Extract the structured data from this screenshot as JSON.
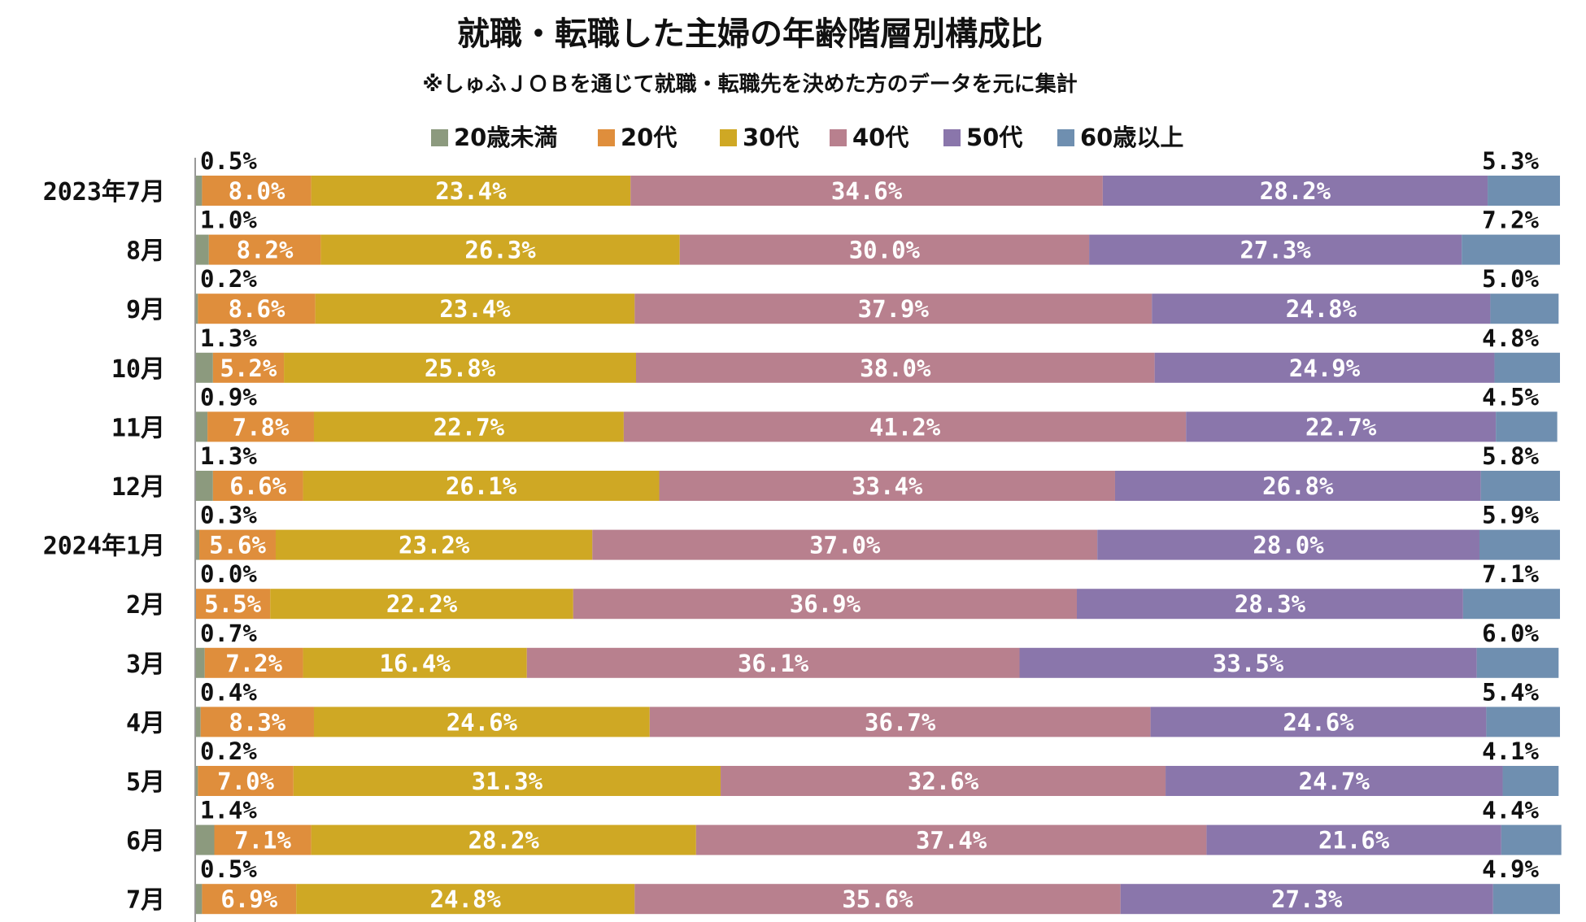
{
  "chart_data": {
    "type": "bar",
    "orientation": "horizontal-stacked-100",
    "title": "就職・転職した主婦の年齢階層別構成比",
    "subtitle": "※しゅふＪＯＢを通じて就職・転職先を決めた方のデータを元に集計",
    "legend_position": "top",
    "grid": false,
    "xlim": [
      0,
      100
    ],
    "categories": [
      "2023年7月",
      "8月",
      "9月",
      "10月",
      "11月",
      "12月",
      "2024年1月",
      "2月",
      "3月",
      "4月",
      "5月",
      "6月",
      "7月"
    ],
    "series": [
      {
        "name": "20歳未満",
        "color": "#8c9a7e",
        "values": [
          0.5,
          1.0,
          0.2,
          1.3,
          0.9,
          1.3,
          0.3,
          0.0,
          0.7,
          0.4,
          0.2,
          1.4,
          0.5
        ],
        "labels": [
          "0.5%",
          "1.0%",
          "0.2%",
          "1.3%",
          "0.9%",
          "1.3%",
          "0.3%",
          "0.0%",
          "0.7%",
          "0.4%",
          "0.2%",
          "1.4%",
          "0.5%"
        ]
      },
      {
        "name": "20代",
        "color": "#df8e3c",
        "values": [
          8.0,
          8.2,
          8.6,
          5.2,
          7.8,
          6.6,
          5.6,
          5.5,
          7.2,
          8.3,
          7.0,
          7.1,
          6.9
        ],
        "labels": [
          "8.0%",
          "8.2%",
          "8.6%",
          "5.2%",
          "7.8%",
          "6.6%",
          "5.6%",
          "5.5%",
          "7.2%",
          "8.3%",
          "7.0%",
          "7.1%",
          "6.9%"
        ]
      },
      {
        "name": "30代",
        "color": "#cfa824",
        "values": [
          23.4,
          26.3,
          23.4,
          25.8,
          22.7,
          26.1,
          23.2,
          22.2,
          16.4,
          24.6,
          31.3,
          28.2,
          24.8
        ],
        "labels": [
          "23.4%",
          "26.3%",
          "23.4%",
          "25.8%",
          "22.7%",
          "26.1%",
          "23.2%",
          "22.2%",
          "16.4%",
          "24.6%",
          "31.3%",
          "28.2%",
          "24.8%"
        ]
      },
      {
        "name": "40代",
        "color": "#b8808e",
        "values": [
          34.6,
          30.0,
          37.9,
          38.0,
          41.2,
          33.4,
          37.0,
          36.9,
          36.1,
          36.7,
          32.6,
          37.4,
          35.6
        ],
        "labels": [
          "34.6%",
          "30.0%",
          "37.9%",
          "38.0%",
          "41.2%",
          "33.4%",
          "37.0%",
          "36.9%",
          "36.1%",
          "36.7%",
          "32.6%",
          "37.4%",
          "35.6%"
        ]
      },
      {
        "name": "50代",
        "color": "#8a76ab",
        "values": [
          28.2,
          27.3,
          24.8,
          24.9,
          22.7,
          26.8,
          28.0,
          28.3,
          33.5,
          24.6,
          24.7,
          21.6,
          27.3
        ],
        "labels": [
          "28.2%",
          "27.3%",
          "24.8%",
          "24.9%",
          "22.7%",
          "26.8%",
          "28.0%",
          "28.3%",
          "33.5%",
          "24.6%",
          "24.7%",
          "21.6%",
          "27.3%"
        ]
      },
      {
        "name": "60歳以上",
        "color": "#6f8fb0",
        "values": [
          5.3,
          7.2,
          5.0,
          4.8,
          4.5,
          5.8,
          5.9,
          7.1,
          6.0,
          5.4,
          4.1,
          4.4,
          4.9
        ],
        "labels": [
          "5.3%",
          "7.2%",
          "5.0%",
          "4.8%",
          "4.5%",
          "5.8%",
          "5.9%",
          "7.1%",
          "6.0%",
          "5.4%",
          "4.1%",
          "4.4%",
          "4.9%"
        ]
      }
    ]
  }
}
